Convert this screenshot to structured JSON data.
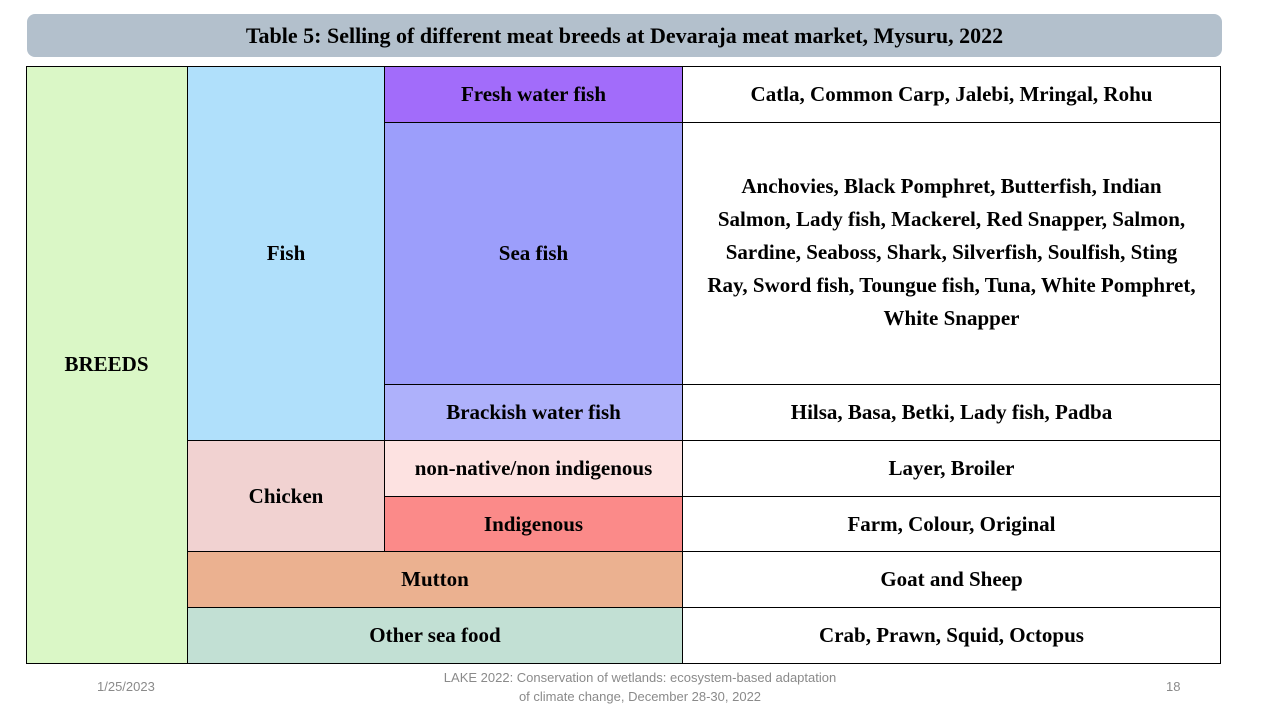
{
  "title": "Table 5: Selling of different meat breeds at Devaraja meat market, Mysuru, 2022",
  "table": {
    "breeds": "BREEDS",
    "fish": "Fish",
    "fresh_water_fish": "Fresh water fish",
    "fresh_water_list": "Catla, Common Carp, Jalebi, Mringal, Rohu",
    "sea_fish": "Sea fish",
    "sea_fish_list": "Anchovies, Black Pomphret, Butterfish, Indian Salmon, Lady fish, Mackerel, Red Snapper, Salmon, Sardine, Seaboss, Shark, Silverfish, Soulfish, Sting Ray, Sword fish, Toungue fish, Tuna, White Pomphret, White Snapper",
    "brackish_water_fish": "Brackish water fish",
    "brackish_list": "Hilsa, Basa, Betki, Lady fish, Padba",
    "chicken": "Chicken",
    "non_native": "non-native/non indigenous",
    "non_native_list": "Layer, Broiler",
    "indigenous": "Indigenous",
    "indigenous_list": "Farm, Colour, Original",
    "mutton": "Mutton",
    "mutton_list": "Goat and Sheep",
    "other_sea_food": "Other sea food",
    "other_sea_food_list": "Crab, Prawn, Squid, Octopus"
  },
  "footer": {
    "date": "1/25/2023",
    "center": "LAKE 2022: Conservation of wetlands: ecosystem-based adaptation of climate change, December 28-30, 2022",
    "page": "18"
  },
  "colors": {
    "title_bar": "#b3c0cc",
    "breeds": "#daf7c6",
    "fish": "#b0e0fb",
    "fresh_water_fish": "#a26cfa",
    "sea_fish": "#9c9efb",
    "brackish_water_fish": "#aeb1fb",
    "chicken": "#f1d2d1",
    "non_native": "#fde2e1",
    "indigenous": "#fb8a89",
    "mutton": "#ebb190",
    "other_sea_food": "#c2e0d4"
  }
}
